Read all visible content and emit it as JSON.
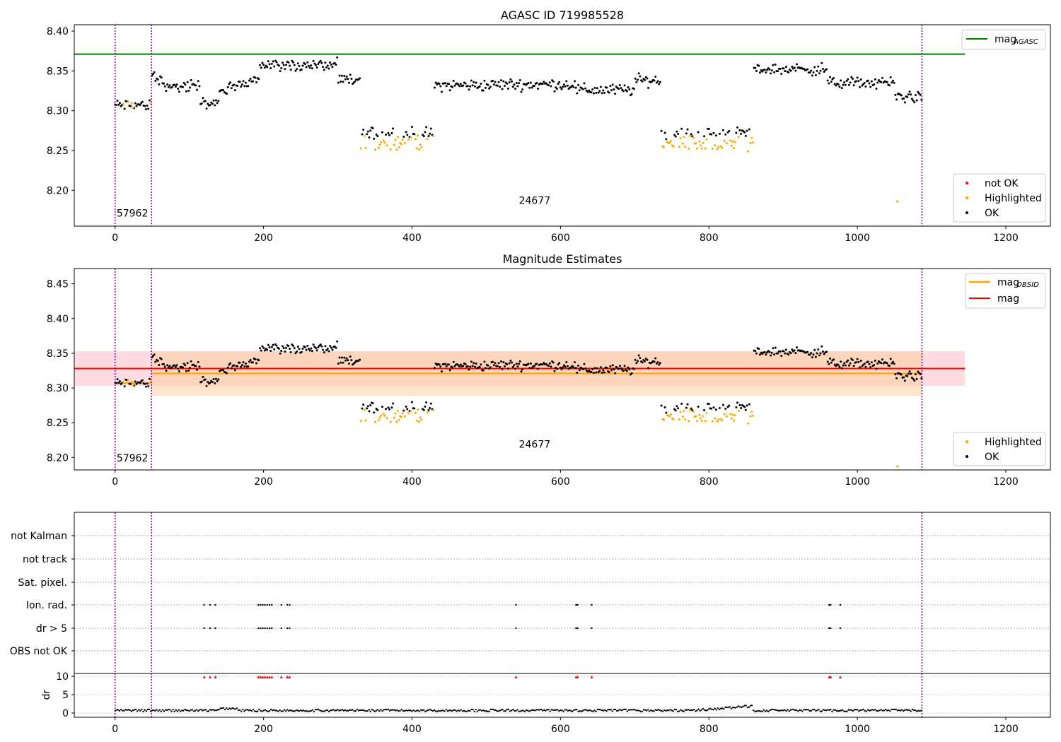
{
  "chart_data": [
    {
      "type": "scatter",
      "title": "AGASC ID 719985528",
      "xlabel": "",
      "ylabel": "",
      "xlim": [
        -55,
        1260
      ],
      "ylim": [
        8.155,
        8.408
      ],
      "x_ticks": [
        0,
        200,
        400,
        600,
        800,
        1000,
        1200
      ],
      "x_tick_labels": [
        "0",
        "200",
        "400",
        "600",
        "800",
        "1000",
        "1200"
      ],
      "y_ticks": [
        8.2,
        8.25,
        8.3,
        8.35,
        8.4
      ],
      "y_tick_labels": [
        "8.20",
        "8.25",
        "8.30",
        "8.35",
        "8.40"
      ],
      "obsid_boundaries": [
        0,
        49,
        1087
      ],
      "obsid_labels": [
        {
          "text": "57962",
          "x": 2,
          "y": 8.167
        },
        {
          "text": "24677",
          "x": 544,
          "y": 8.183
        }
      ],
      "series_legend": [
        "not OK",
        "Highlighted",
        "OK"
      ],
      "line_legend": [
        {
          "label": "mag",
          "subscript": "AGASC",
          "color": "#008000"
        }
      ],
      "lines": [
        {
          "name": "mag_AGASC",
          "y": 8.371,
          "x": [
            -55,
            1145
          ],
          "color": "#008000"
        }
      ],
      "highlighted_points": [
        [
          1054,
          8.186
        ]
      ],
      "colors": {
        "ok": "#000000",
        "highlighted": "#ffa500",
        "not_ok": "#ff0000",
        "boundary": "#800080"
      }
    },
    {
      "type": "scatter",
      "title": "Magnitude Estimates",
      "xlabel": "",
      "ylabel": "",
      "xlim": [
        -55,
        1260
      ],
      "ylim": [
        8.182,
        8.472
      ],
      "x_ticks": [
        0,
        200,
        400,
        600,
        800,
        1000,
        1200
      ],
      "x_tick_labels": [
        "0",
        "200",
        "400",
        "600",
        "800",
        "1000",
        "1200"
      ],
      "y_ticks": [
        8.2,
        8.25,
        8.3,
        8.35,
        8.4,
        8.45
      ],
      "y_tick_labels": [
        "8.20",
        "8.25",
        "8.30",
        "8.35",
        "8.40",
        "8.45"
      ],
      "obsid_boundaries": [
        0,
        49,
        1087
      ],
      "obsid_labels": [
        {
          "text": "57962",
          "x": 2,
          "y": 8.194
        },
        {
          "text": "24677",
          "x": 544,
          "y": 8.214
        }
      ],
      "series_legend": [
        "Highlighted",
        "OK"
      ],
      "line_legend": [
        {
          "label": "mag",
          "subscript": "OBSID",
          "color": "#ffa500"
        },
        {
          "label": "mag",
          "subscript": "",
          "color": "#ff0000"
        }
      ],
      "lines": [
        {
          "name": "mag_OBSID_57962",
          "y": 8.307,
          "x": [
            0,
            49
          ],
          "color": "#ffa500"
        },
        {
          "name": "mag_OBSID_24677",
          "y": 8.321,
          "x": [
            49,
            1087
          ],
          "color": "#ffa500"
        },
        {
          "name": "mag",
          "y": 8.328,
          "x": [
            -55,
            1145
          ],
          "color": "#ff0000"
        }
      ],
      "bands": [
        {
          "y": [
            8.303,
            8.353
          ],
          "x": [
            -55,
            1145
          ],
          "color": "#ffc0cb"
        },
        {
          "y": [
            8.289,
            8.353
          ],
          "x": [
            49,
            1087
          ],
          "color": "#ffd0a0"
        }
      ],
      "highlighted_points": [
        [
          1054,
          8.187
        ]
      ],
      "colors": {
        "ok": "#000000",
        "highlighted": "#ffa500",
        "boundary": "#800080"
      }
    },
    {
      "type": "scatter",
      "title": "",
      "xlim": [
        -55,
        1260
      ],
      "flag_rows": [
        "not Kalman",
        "not track",
        "Sat. pixel.",
        "Ion. rad.",
        "dr > 5",
        "OBS not OK"
      ],
      "flag_points": {
        "Ion. rad.": [
          120,
          128,
          135,
          193,
          196,
          199,
          202,
          205,
          208,
          211,
          224,
          232,
          235,
          540,
          621,
          623,
          642,
          962,
          964,
          977
        ],
        "dr > 5": [
          120,
          128,
          135,
          193,
          196,
          199,
          202,
          205,
          208,
          211,
          224,
          232,
          235,
          540,
          621,
          623,
          642,
          962,
          964,
          977
        ]
      },
      "dr_axis": {
        "ylabel": "dr",
        "ylim": [
          -0.5,
          10.5
        ],
        "y_ticks": [
          0,
          5,
          10
        ],
        "y_tick_labels": [
          "0",
          "5",
          "10"
        ],
        "clipped_markers_x": [
          120,
          128,
          135,
          193,
          196,
          199,
          202,
          205,
          208,
          211,
          224,
          232,
          235,
          540,
          621,
          623,
          642,
          962,
          964,
          977
        ]
      },
      "x_ticks": [
        0,
        200,
        400,
        600,
        800,
        1000,
        1200
      ],
      "x_tick_labels": [
        "0",
        "200",
        "400",
        "600",
        "800",
        "1000",
        "1200"
      ],
      "obsid_boundaries": [
        0,
        49,
        1087
      ]
    }
  ]
}
